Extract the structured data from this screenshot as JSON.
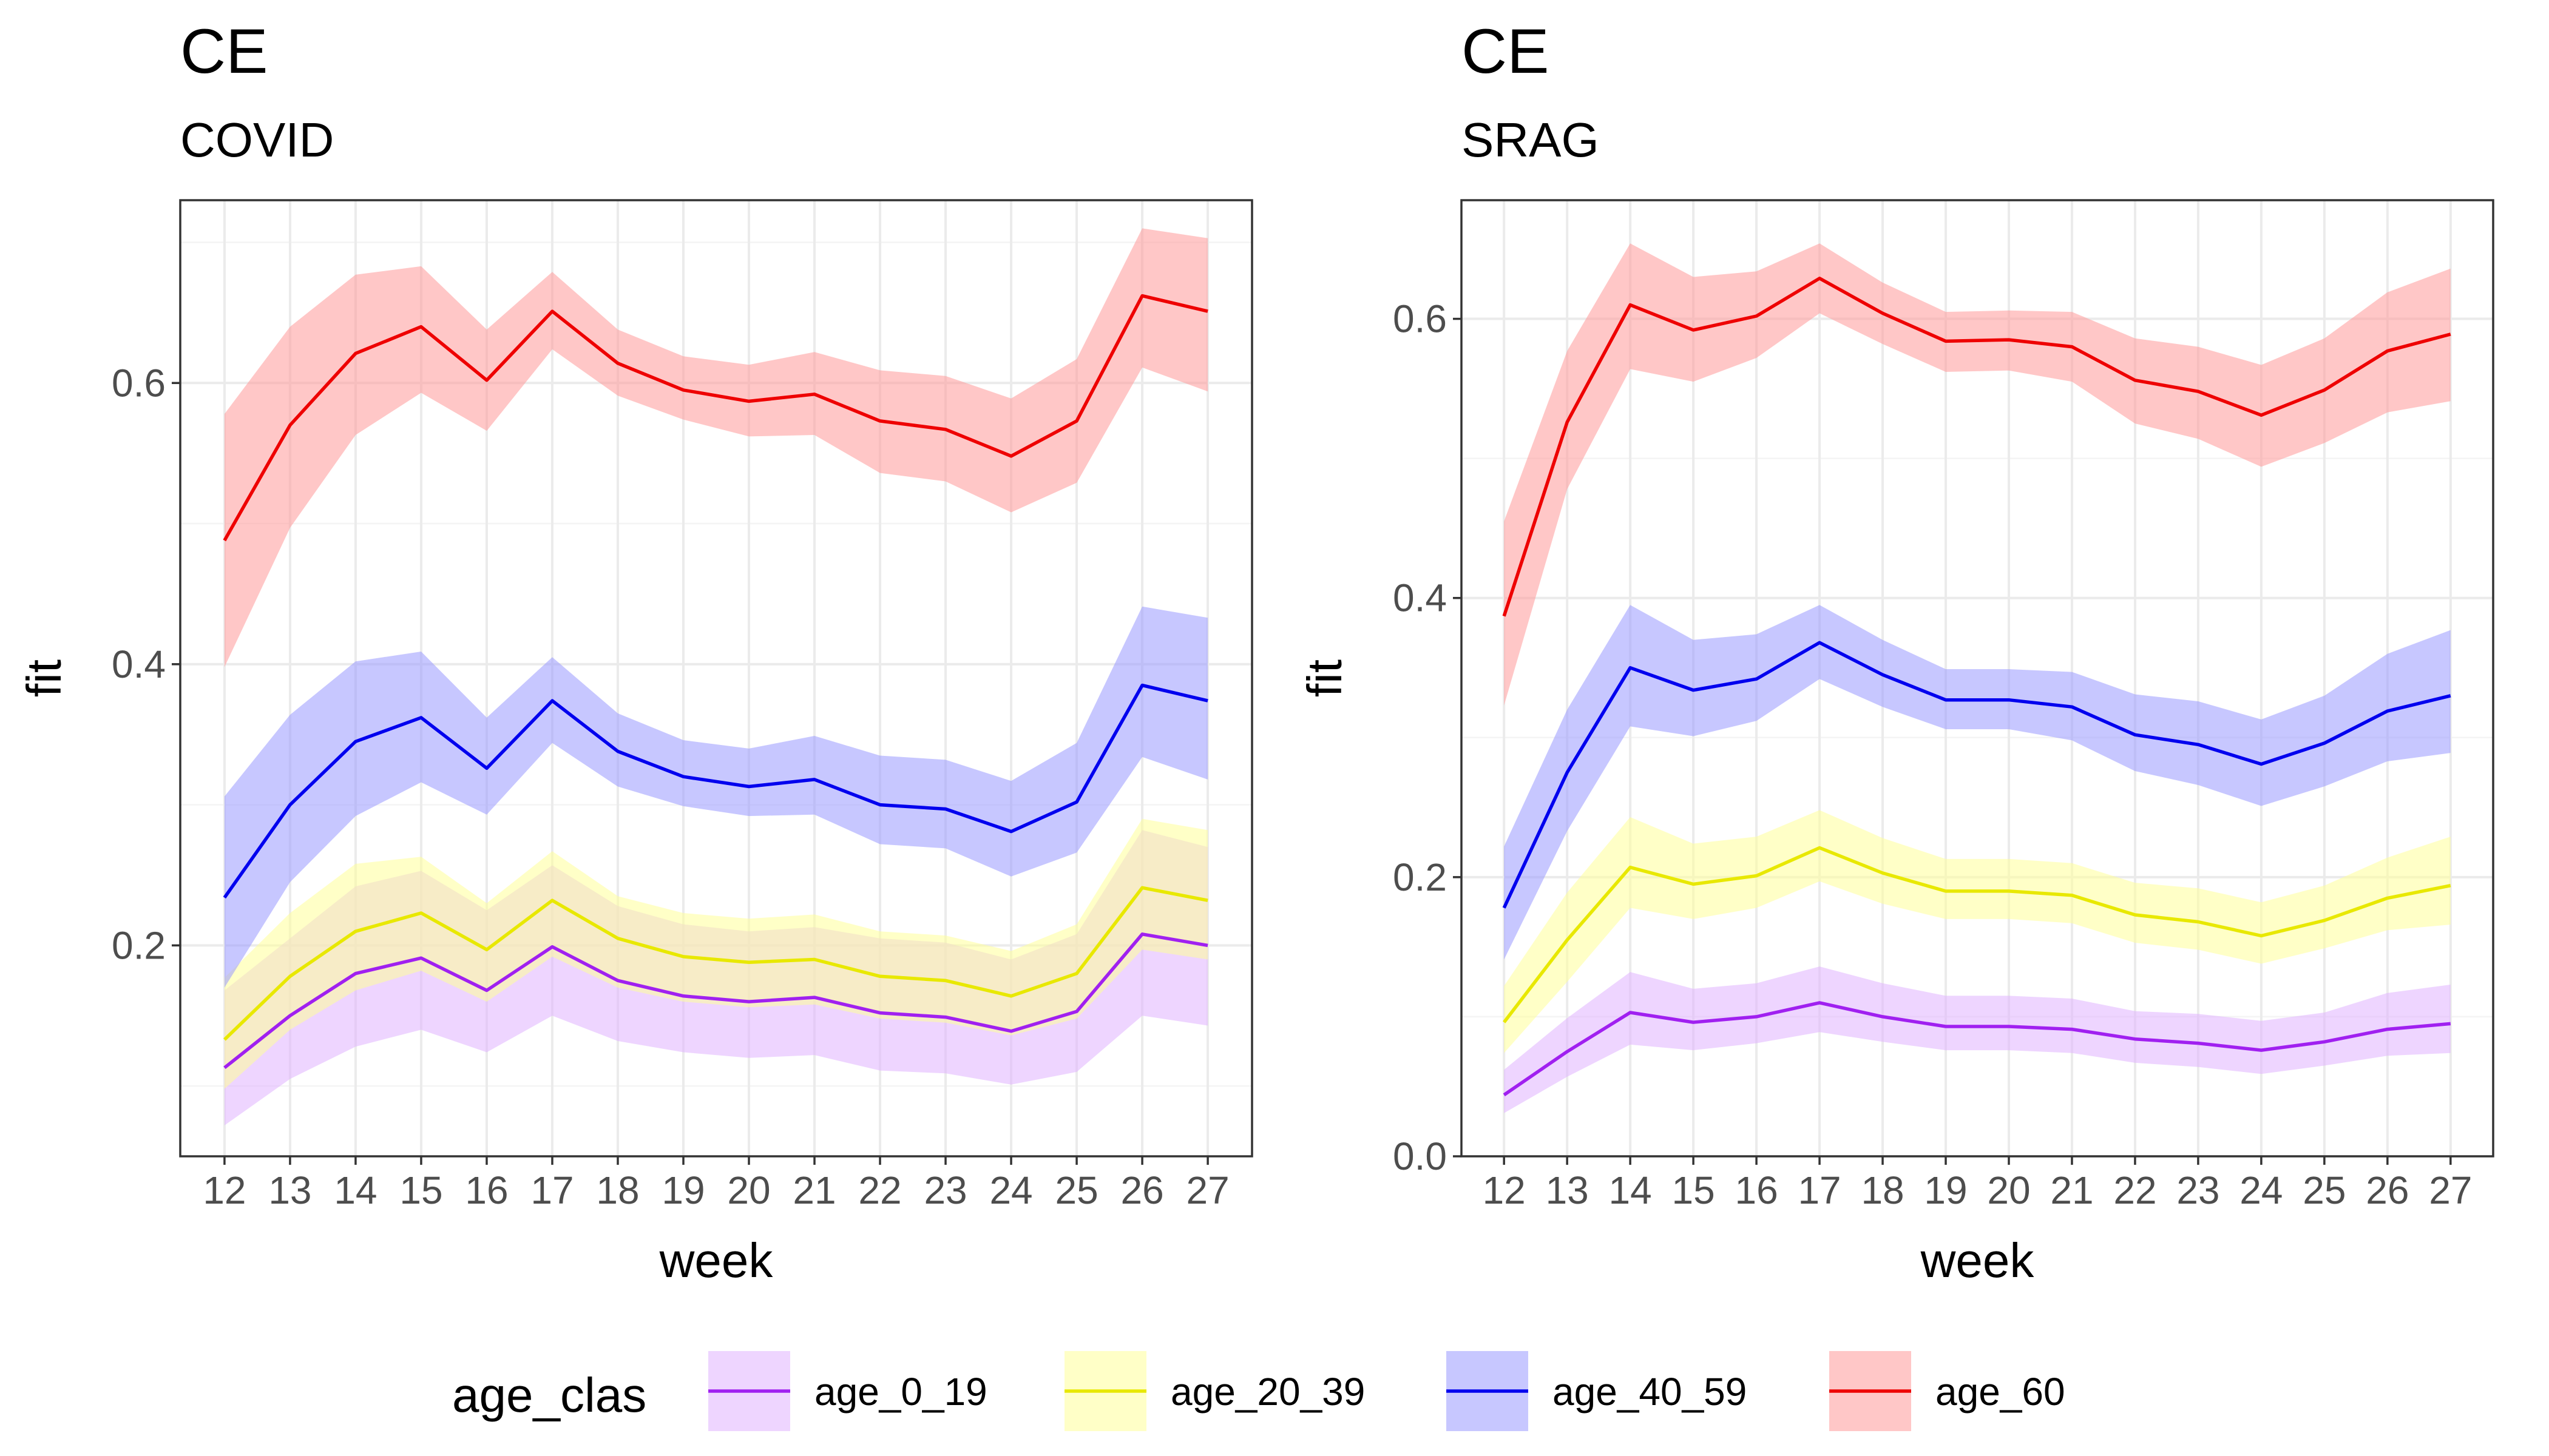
{
  "chart_data": [
    {
      "type": "line",
      "title": "CE",
      "subtitle": "COVID",
      "xlabel": "week",
      "ylabel": "fit",
      "x": [
        12,
        13,
        14,
        15,
        16,
        17,
        18,
        19,
        20,
        21,
        22,
        23,
        24,
        25,
        26,
        27
      ],
      "ylim": [
        0.05,
        0.73
      ],
      "yticks": [
        0.2,
        0.4,
        0.6
      ],
      "ytick_labels": [
        "0.2",
        "0.4",
        "0.6"
      ],
      "grid": true,
      "series": [
        {
          "name": "age_0_19",
          "line_color": "#a020f0",
          "fill_color": "#e0b3ff",
          "values": [
            0.113,
            0.15,
            0.18,
            0.191,
            0.168,
            0.199,
            0.175,
            0.164,
            0.16,
            0.163,
            0.152,
            0.149,
            0.139,
            0.153,
            0.208,
            0.2
          ],
          "lower": [
            0.072,
            0.105,
            0.128,
            0.14,
            0.124,
            0.15,
            0.132,
            0.124,
            0.12,
            0.122,
            0.111,
            0.109,
            0.101,
            0.11,
            0.15,
            0.143
          ],
          "upper": [
            0.168,
            0.205,
            0.242,
            0.253,
            0.225,
            0.257,
            0.228,
            0.215,
            0.21,
            0.213,
            0.205,
            0.202,
            0.19,
            0.208,
            0.282,
            0.27
          ]
        },
        {
          "name": "age_20_39",
          "line_color": "#e8e800",
          "fill_color": "#ffff99",
          "values": [
            0.133,
            0.178,
            0.21,
            0.223,
            0.197,
            0.232,
            0.205,
            0.192,
            0.188,
            0.19,
            0.178,
            0.175,
            0.164,
            0.18,
            0.241,
            0.232
          ],
          "lower": [
            0.098,
            0.14,
            0.168,
            0.182,
            0.16,
            0.192,
            0.17,
            0.16,
            0.156,
            0.158,
            0.148,
            0.145,
            0.136,
            0.148,
            0.197,
            0.19
          ],
          "upper": [
            0.177,
            0.223,
            0.258,
            0.263,
            0.23,
            0.267,
            0.235,
            0.223,
            0.219,
            0.222,
            0.21,
            0.207,
            0.196,
            0.215,
            0.29,
            0.282
          ]
        },
        {
          "name": "age_40_59",
          "line_color": "#0000ee",
          "fill_color": "#9999ff",
          "values": [
            0.234,
            0.3,
            0.345,
            0.362,
            0.326,
            0.374,
            0.338,
            0.32,
            0.313,
            0.318,
            0.3,
            0.297,
            0.281,
            0.302,
            0.385,
            0.374
          ],
          "lower": [
            0.17,
            0.245,
            0.292,
            0.316,
            0.293,
            0.344,
            0.313,
            0.299,
            0.292,
            0.293,
            0.272,
            0.269,
            0.249,
            0.266,
            0.334,
            0.318
          ],
          "upper": [
            0.306,
            0.364,
            0.402,
            0.409,
            0.362,
            0.405,
            0.365,
            0.346,
            0.34,
            0.349,
            0.335,
            0.332,
            0.317,
            0.344,
            0.441,
            0.433
          ]
        },
        {
          "name": "age_60",
          "line_color": "#ee0000",
          "fill_color": "#ff9999",
          "values": [
            0.488,
            0.57,
            0.621,
            0.64,
            0.602,
            0.651,
            0.614,
            0.595,
            0.587,
            0.592,
            0.573,
            0.567,
            0.548,
            0.573,
            0.662,
            0.651
          ],
          "lower": [
            0.398,
            0.497,
            0.563,
            0.593,
            0.566,
            0.624,
            0.591,
            0.574,
            0.562,
            0.563,
            0.536,
            0.53,
            0.508,
            0.529,
            0.611,
            0.594
          ],
          "upper": [
            0.578,
            0.64,
            0.677,
            0.683,
            0.638,
            0.679,
            0.638,
            0.619,
            0.613,
            0.622,
            0.609,
            0.605,
            0.589,
            0.617,
            0.71,
            0.703
          ]
        }
      ]
    },
    {
      "type": "line",
      "title": "CE",
      "subtitle": "SRAG",
      "xlabel": "week",
      "ylabel": "fit",
      "x": [
        12,
        13,
        14,
        15,
        16,
        17,
        18,
        19,
        20,
        21,
        22,
        23,
        24,
        25,
        26,
        27
      ],
      "ylim": [
        0.0,
        0.685
      ],
      "yticks": [
        0.0,
        0.2,
        0.4,
        0.6
      ],
      "ytick_labels": [
        "0.0",
        "0.2",
        "0.4",
        "0.6"
      ],
      "grid": true,
      "series": [
        {
          "name": "age_0_19",
          "line_color": "#a020f0",
          "fill_color": "#e0b3ff",
          "values": [
            0.044,
            0.075,
            0.103,
            0.096,
            0.1,
            0.11,
            0.1,
            0.093,
            0.093,
            0.091,
            0.084,
            0.081,
            0.076,
            0.082,
            0.091,
            0.095
          ],
          "lower": [
            0.031,
            0.057,
            0.08,
            0.076,
            0.081,
            0.089,
            0.082,
            0.076,
            0.076,
            0.074,
            0.067,
            0.064,
            0.059,
            0.065,
            0.072,
            0.074
          ],
          "upper": [
            0.062,
            0.099,
            0.132,
            0.12,
            0.124,
            0.136,
            0.124,
            0.115,
            0.115,
            0.113,
            0.104,
            0.102,
            0.097,
            0.103,
            0.117,
            0.123
          ]
        },
        {
          "name": "age_20_39",
          "line_color": "#e8e800",
          "fill_color": "#ffff99",
          "values": [
            0.096,
            0.155,
            0.207,
            0.195,
            0.201,
            0.221,
            0.203,
            0.19,
            0.19,
            0.187,
            0.173,
            0.168,
            0.158,
            0.169,
            0.185,
            0.194
          ],
          "lower": [
            0.074,
            0.125,
            0.178,
            0.17,
            0.178,
            0.197,
            0.181,
            0.17,
            0.17,
            0.167,
            0.153,
            0.148,
            0.138,
            0.149,
            0.162,
            0.166
          ],
          "upper": [
            0.122,
            0.189,
            0.243,
            0.224,
            0.229,
            0.248,
            0.228,
            0.213,
            0.213,
            0.21,
            0.196,
            0.192,
            0.182,
            0.194,
            0.214,
            0.229
          ]
        },
        {
          "name": "age_40_59",
          "line_color": "#0000ee",
          "fill_color": "#9999ff",
          "values": [
            0.178,
            0.275,
            0.35,
            0.334,
            0.342,
            0.368,
            0.345,
            0.327,
            0.327,
            0.322,
            0.302,
            0.295,
            0.281,
            0.296,
            0.319,
            0.33
          ],
          "lower": [
            0.141,
            0.233,
            0.308,
            0.301,
            0.312,
            0.342,
            0.322,
            0.306,
            0.306,
            0.298,
            0.276,
            0.266,
            0.251,
            0.265,
            0.283,
            0.289
          ],
          "upper": [
            0.222,
            0.32,
            0.395,
            0.37,
            0.374,
            0.395,
            0.37,
            0.349,
            0.349,
            0.347,
            0.331,
            0.326,
            0.313,
            0.33,
            0.36,
            0.377
          ]
        },
        {
          "name": "age_60",
          "line_color": "#ee0000",
          "fill_color": "#ff9999",
          "values": [
            0.387,
            0.526,
            0.61,
            0.592,
            0.602,
            0.629,
            0.604,
            0.584,
            0.585,
            0.58,
            0.556,
            0.548,
            0.531,
            0.549,
            0.577,
            0.589
          ],
          "lower": [
            0.323,
            0.478,
            0.564,
            0.555,
            0.572,
            0.604,
            0.582,
            0.562,
            0.563,
            0.555,
            0.525,
            0.514,
            0.494,
            0.511,
            0.533,
            0.541
          ],
          "upper": [
            0.455,
            0.577,
            0.654,
            0.63,
            0.634,
            0.654,
            0.626,
            0.605,
            0.606,
            0.605,
            0.586,
            0.58,
            0.567,
            0.586,
            0.619,
            0.636
          ]
        }
      ]
    }
  ],
  "legend": {
    "title": "age_clas",
    "position": "bottom",
    "items": [
      {
        "label": "age_0_19",
        "line_color": "#a020f0",
        "fill_color": "#e0b3ff"
      },
      {
        "label": "age_20_39",
        "line_color": "#e8e800",
        "fill_color": "#ffff99"
      },
      {
        "label": "age_40_59",
        "line_color": "#0000ee",
        "fill_color": "#9999ff"
      },
      {
        "label": "age_60",
        "line_color": "#ee0000",
        "fill_color": "#ff9999"
      }
    ]
  }
}
